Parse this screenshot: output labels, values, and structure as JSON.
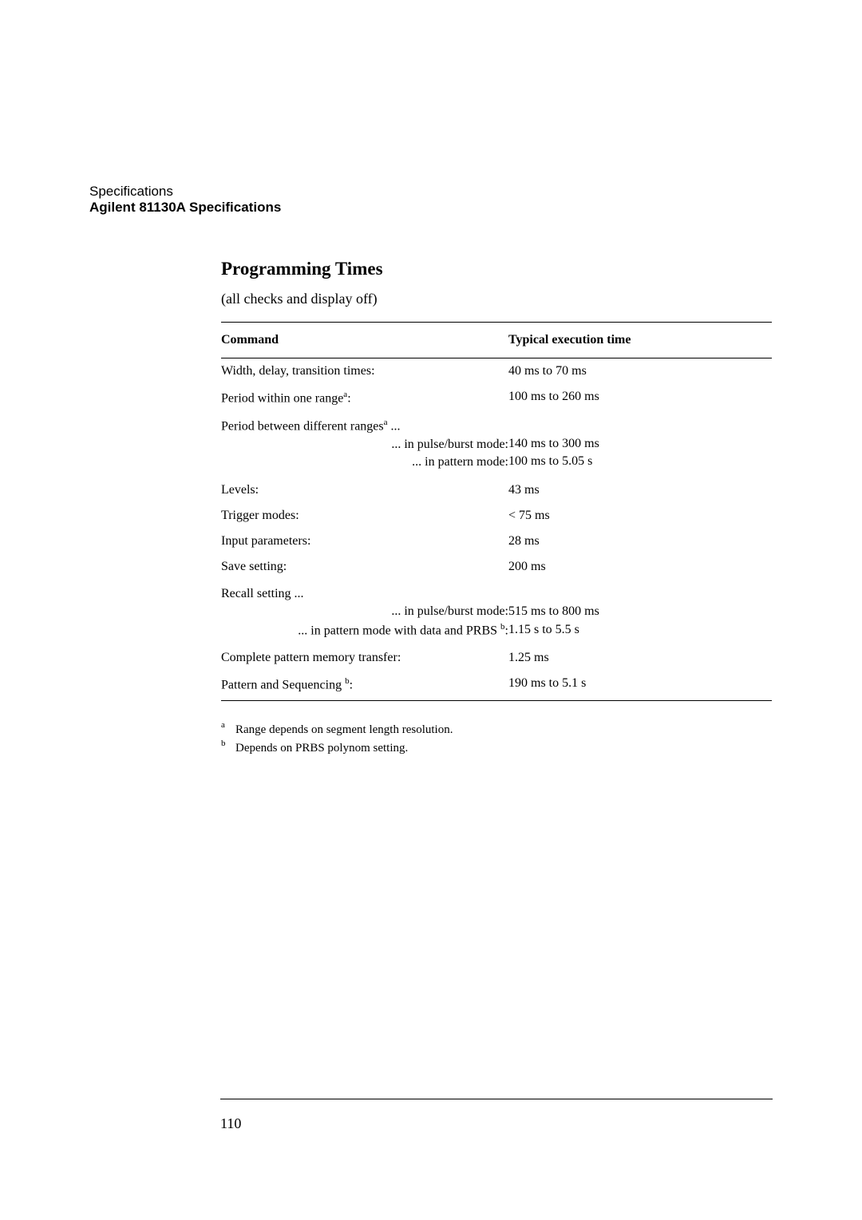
{
  "header": {
    "line1": "Specifications",
    "line2": "Agilent 81130A Specifications"
  },
  "section": {
    "title": "Programming Times",
    "subtitle": "(all checks and display off)"
  },
  "table": {
    "headers": {
      "col1": "Command",
      "col2": "Typical execution time"
    },
    "rows": [
      {
        "label": "Width, delay, transition times:",
        "value": "40 ms to 70 ms"
      },
      {
        "label": "Period within one range",
        "sup": "a",
        "suffix": ":",
        "value": "100 ms to 260 ms"
      },
      {
        "label": "Period between different ranges",
        "sup": "a",
        "suffix": " ...",
        "sublines": [
          {
            "label": "... in pulse/burst mode:",
            "value": "140 ms to 300 ms"
          },
          {
            "label": "... in pattern mode:",
            "value": "100 ms to 5.05 s"
          }
        ]
      },
      {
        "label": "Levels:",
        "value": "43 ms"
      },
      {
        "label": "Trigger modes:",
        "value": "< 75 ms"
      },
      {
        "label": "Input parameters:",
        "value": "28 ms"
      },
      {
        "label": "Save setting:",
        "value": "200 ms"
      },
      {
        "label": "Recall setting ...",
        "sublines": [
          {
            "label": "... in pulse/burst mode:",
            "value": "515 ms to 800 ms"
          },
          {
            "label": "... in pattern mode with data and PRBS ",
            "sup": "b",
            "suffix": ":",
            "value": "1.15 s to 5.5 s"
          }
        ]
      },
      {
        "label": "Complete pattern memory transfer:",
        "value": "1.25 ms"
      },
      {
        "label": "Pattern and Sequencing ",
        "sup": "b",
        "suffix": ":",
        "value": "190 ms to 5.1 s"
      }
    ]
  },
  "footnotes": [
    {
      "marker": "a",
      "text": "Range depends on segment length resolution."
    },
    {
      "marker": "b",
      "text": "Depends on PRBS polynom setting."
    }
  ],
  "footer": {
    "pagenum": "110"
  }
}
